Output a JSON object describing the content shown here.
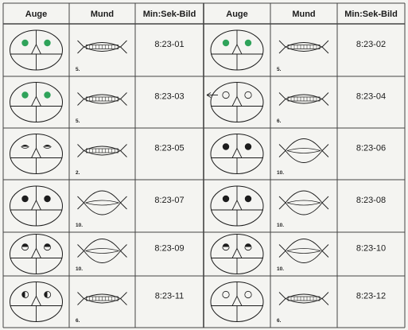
{
  "columns": [
    "Auge",
    "Mund",
    "Min:Sek-Bild",
    "Auge",
    "Mund",
    "Min:Sek-Bild"
  ],
  "colors": {
    "green": "#2fa35a",
    "ink": "#1c1c1c",
    "line": "#444444",
    "paper": "#f4f4f1"
  },
  "rows": [
    [
      {
        "eyes": "green",
        "mouth": "closed",
        "num": "5.",
        "time": "8:23-01"
      },
      {
        "eyes": "green",
        "mouth": "closed",
        "num": "5.",
        "time": "8:23-02"
      }
    ],
    [
      {
        "eyes": "green",
        "mouth": "closed",
        "num": "5.",
        "time": "8:23-03"
      },
      {
        "eyes": "empty",
        "mouth": "closed",
        "num": "6.",
        "time": "8:23-04",
        "arrow": true
      }
    ],
    [
      {
        "eyes": "lidded",
        "mouth": "closed",
        "num": "2.",
        "time": "8:23-05"
      },
      {
        "eyes": "black",
        "mouth": "open",
        "num": "10.",
        "time": "8:23-06"
      }
    ],
    [
      {
        "eyes": "black",
        "mouth": "open",
        "num": "10.",
        "time": "8:23-07"
      },
      {
        "eyes": "black",
        "mouth": "open",
        "num": "10.",
        "time": "8:23-08"
      }
    ],
    [
      {
        "eyes": "half-top",
        "mouth": "open",
        "num": "10.",
        "time": "8:23-09"
      },
      {
        "eyes": "half-top",
        "mouth": "open",
        "num": "10.",
        "time": "8:23-10"
      }
    ],
    [
      {
        "eyes": "half-left",
        "mouth": "closed",
        "num": "6.",
        "time": "8:23-11"
      },
      {
        "eyes": "empty",
        "mouth": "closed",
        "num": "6.",
        "time": "8:23-12"
      }
    ]
  ]
}
